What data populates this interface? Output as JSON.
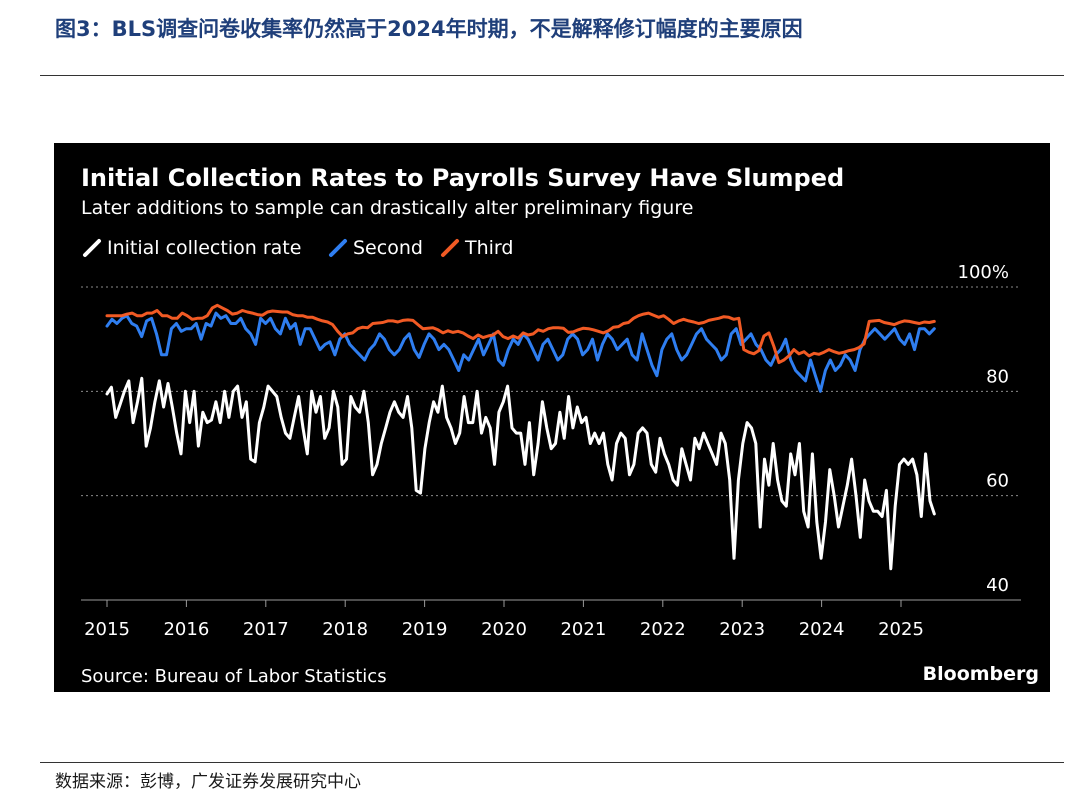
{
  "figure": {
    "title": "图3：BLS调查问卷收集率仍然高于2024年时期，不是解释修订幅度的主要原因",
    "source": "数据来源：彭博，广发证券发展研究中心"
  },
  "chart_data": {
    "type": "line",
    "title": "Initial Collection Rates to Payrolls Survey Have Slumped",
    "subtitle": "Later additions to sample can drastically alter preliminary figure",
    "source": "Source: Bureau of Labor Statistics",
    "brand": "Bloomberg",
    "xlabel": "",
    "ylabel": "",
    "xlim": [
      2015,
      2026.3
    ],
    "ylim": [
      40,
      100
    ],
    "yticks": [
      "40",
      "60",
      "80",
      "100%"
    ],
    "xticks": [
      "2015",
      "2016",
      "2017",
      "2018",
      "2019",
      "2020",
      "2021",
      "2022",
      "2023",
      "2024",
      "2025"
    ],
    "grid": true,
    "legend_position": "top-left",
    "series": [
      {
        "name": "Initial collection rate",
        "color": "#ffffff",
        "values": [
          79.5,
          80.8,
          75,
          77.5,
          80,
          82,
          74,
          78,
          82.5,
          69.5,
          73,
          78,
          82,
          77,
          81.5,
          77,
          72,
          68,
          80,
          74,
          80,
          69.5,
          76,
          74,
          74.5,
          78,
          74,
          80,
          75,
          80,
          81,
          75,
          78,
          67,
          66.5,
          74,
          77,
          81,
          80,
          79,
          75,
          72,
          71,
          75,
          79,
          73,
          68,
          80,
          76,
          79,
          71,
          73,
          80,
          77,
          66,
          67,
          79,
          77,
          76,
          80,
          74,
          64,
          66,
          70,
          73,
          76,
          78,
          76,
          75,
          79,
          73,
          61,
          60.5,
          69,
          74,
          78,
          76,
          81,
          75,
          73,
          70,
          72,
          79,
          74,
          74,
          80,
          72,
          75,
          73,
          66,
          76,
          78,
          81,
          73,
          72,
          72,
          66,
          74,
          64,
          70,
          78,
          73,
          69,
          70,
          76,
          71,
          79,
          73,
          77,
          74,
          75,
          70,
          72,
          70,
          72,
          66,
          63,
          70,
          72,
          71,
          64,
          66,
          72,
          73,
          72,
          66,
          64.5,
          71,
          68,
          66,
          63,
          62,
          69,
          66,
          63,
          71,
          69,
          72,
          70,
          68,
          66,
          72,
          70,
          63,
          48,
          63,
          70,
          74,
          73,
          70,
          54,
          67,
          62,
          70,
          63,
          59,
          58,
          68,
          64,
          70,
          57,
          54,
          68,
          55,
          48,
          55,
          65,
          60,
          54,
          58,
          62,
          67,
          60,
          52,
          63,
          59,
          57,
          57,
          56,
          61,
          46,
          58,
          66,
          67,
          66,
          67,
          64,
          56,
          68,
          59,
          56.5
        ],
        "approx_points": 165
      },
      {
        "name": "Second",
        "color": "#2f7ef0",
        "values": [
          92.5,
          93.8,
          93,
          94,
          94.5,
          93,
          92.5,
          90.5,
          93.5,
          94,
          91,
          87,
          87,
          92,
          93,
          91.5,
          92,
          92,
          93,
          90,
          93,
          92.5,
          95,
          94,
          94.5,
          93,
          93,
          94,
          92,
          91,
          89,
          94,
          93,
          94,
          92,
          91,
          94,
          92,
          93,
          89,
          92,
          92,
          90,
          88,
          89,
          89.5,
          87,
          90,
          91,
          89,
          88,
          87,
          86,
          88,
          89,
          91,
          90,
          88,
          87,
          88,
          90,
          91,
          88,
          86.5,
          89,
          91,
          90,
          88,
          89,
          88,
          86,
          84,
          87,
          86,
          88,
          90,
          87,
          89,
          91,
          86,
          85,
          88,
          90,
          89,
          91,
          90,
          88,
          86,
          89,
          90,
          88,
          86,
          87,
          90,
          91,
          90,
          87,
          88,
          90,
          86,
          89,
          91,
          90,
          88,
          89,
          90,
          87,
          86,
          91,
          88,
          85,
          83,
          88,
          90,
          91,
          88,
          86,
          87,
          89,
          91,
          92,
          90,
          89,
          88,
          86,
          87,
          91,
          92,
          89,
          90,
          91,
          89,
          88,
          86,
          85,
          87,
          88,
          90,
          86,
          84,
          83,
          82,
          86,
          83,
          80,
          84,
          86,
          84,
          85,
          87,
          86,
          84,
          88,
          90,
          91,
          92,
          91,
          90,
          91,
          92,
          90,
          89,
          91,
          88,
          92,
          92,
          91,
          92
        ],
        "approx_points": 165
      },
      {
        "name": "Third",
        "color": "#f15a24",
        "values": [
          94.5,
          94.5,
          94.5,
          94.5,
          94.8,
          95,
          94.5,
          94.5,
          95,
          95,
          95.5,
          94.5,
          94.5,
          94,
          94,
          95,
          94.5,
          93.8,
          94,
          94,
          94.5,
          96,
          96.5,
          96,
          95.5,
          94.8,
          95,
          95.5,
          95.2,
          95,
          94.7,
          94.6,
          95.2,
          95.4,
          95.3,
          95.2,
          95.2,
          94.7,
          94.5,
          94.5,
          94.2,
          94.2,
          93.8,
          93.5,
          93.3,
          92.8,
          91.5,
          90.5,
          91,
          91.2,
          92,
          92.3,
          92.2,
          93,
          93.1,
          93.2,
          93.5,
          93.5,
          93.3,
          93.6,
          93.7,
          93.6,
          92.8,
          92,
          92.1,
          92.2,
          91.8,
          91.2,
          91.6,
          91.3,
          91.5,
          91.2,
          90.6,
          90.1,
          90.8,
          90.3,
          90.6,
          90.8,
          91.5,
          90.5,
          90.1,
          90.6,
          90.2,
          91.2,
          90.8,
          91,
          91.8,
          91.5,
          92,
          92.2,
          92.2,
          92.1,
          91.3,
          91.4,
          91.8,
          92.1,
          92,
          91.8,
          91.5,
          91.2,
          91.6,
          92.3,
          92.4,
          93,
          93.2,
          94,
          94.5,
          94.8,
          95,
          94.6,
          94.2,
          94.5,
          93.8,
          93,
          93.5,
          93.8,
          93.5,
          93.3,
          93,
          93.2,
          93.6,
          93.8,
          94,
          94.3,
          94.2,
          93.8,
          94,
          88,
          87.5,
          87.2,
          87.8,
          90.6,
          91.2,
          88.6,
          85.5,
          86,
          86.8,
          88,
          87.2,
          87.6,
          86.8,
          87.3,
          87.1,
          87.5,
          88,
          87.6,
          87.3,
          87.5,
          87.8,
          88,
          88.4,
          89.1,
          93.4,
          93.5,
          93.6,
          93.2,
          93,
          92.8,
          93.2,
          93.5,
          93.4,
          93.2,
          93,
          93.3,
          93.2,
          93.4
        ],
        "approx_points": 165
      }
    ]
  }
}
